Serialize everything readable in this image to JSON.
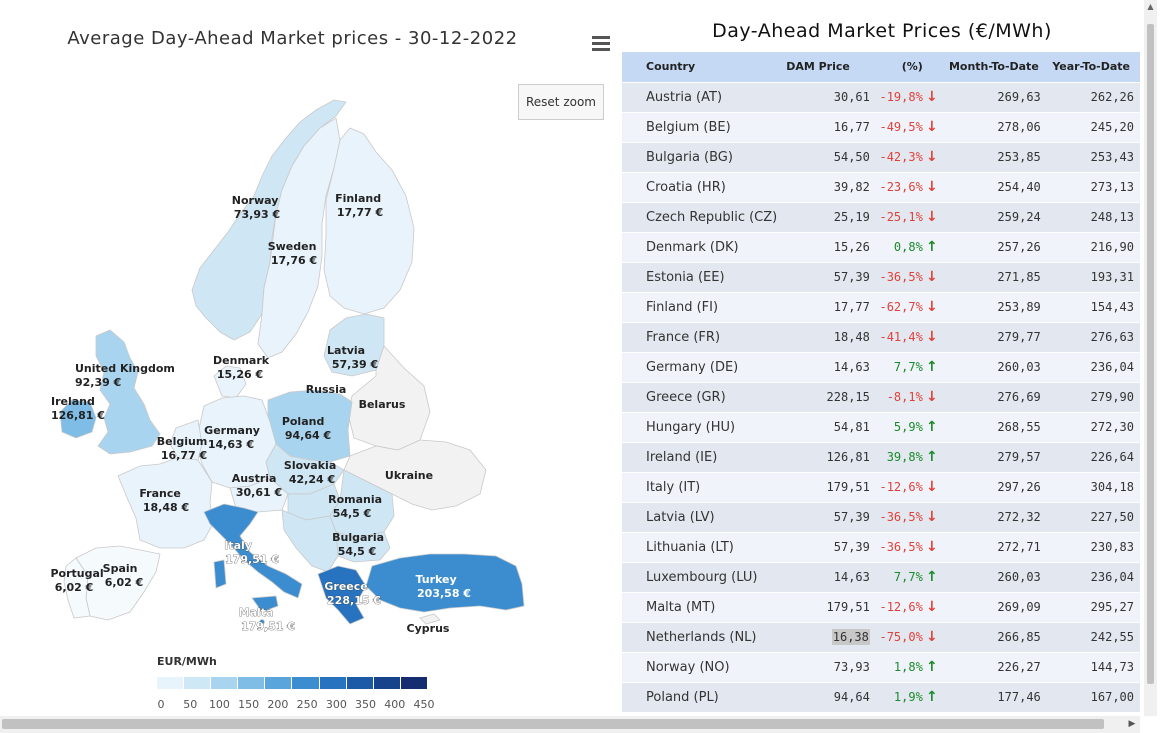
{
  "map": {
    "title": "Average Day-Ahead Market prices - 30-12-2022",
    "reset_zoom_label": "Reset zoom",
    "menu_icon": "hamburger-menu-icon",
    "legend_title": "EUR/MWh",
    "legend_ticks": [
      "0",
      "50",
      "100",
      "150",
      "200",
      "250",
      "300",
      "350",
      "400",
      "450"
    ],
    "legend_colors": [
      "#e8f4fb",
      "#cfe8f6",
      "#a9d4ef",
      "#7fbde6",
      "#5aa6dc",
      "#3c8dd0",
      "#2773c0",
      "#1c5aa8",
      "#17438c",
      "#152d70"
    ],
    "labels": {
      "norway": [
        "Norway",
        "73,93 €"
      ],
      "finland": [
        "Finland",
        "17,77 €"
      ],
      "sweden": [
        "Sweden",
        "17,76 €"
      ],
      "denmark": [
        "Denmark",
        "15,26 €"
      ],
      "latvia": [
        "Latvia",
        "57,39 €"
      ],
      "russia": [
        "Russia"
      ],
      "belarus": [
        "Belarus"
      ],
      "uk": [
        "United Kingdom",
        "92,39 €"
      ],
      "ireland": [
        "Ireland",
        "126,81 €"
      ],
      "poland": [
        "Poland",
        "94,64 €"
      ],
      "germany": [
        "Germany",
        "14,63 €"
      ],
      "belgium": [
        "Belgium",
        "16,77 €"
      ],
      "slovakia": [
        "Slovakia",
        "42,24 €"
      ],
      "ukraine": [
        "Ukraine"
      ],
      "austria": [
        "Austria",
        "30,61 €"
      ],
      "france": [
        "France",
        "18,48 €"
      ],
      "romania": [
        "Romania",
        "54,5 €"
      ],
      "bulgaria": [
        "Bulgaria",
        "54,5 €"
      ],
      "italy": [
        "Italy",
        "179,51 €"
      ],
      "portugal": [
        "Portugal",
        "6,02 €"
      ],
      "spain": [
        "Spain",
        "6,02 €"
      ],
      "greece": [
        "Greece",
        "228,15 €"
      ],
      "turkey": [
        "Turkey",
        "203,58 €"
      ],
      "malta": [
        "Malta",
        "179,51 €"
      ],
      "cyprus": [
        "Cyprus"
      ]
    }
  },
  "table": {
    "title": "Day-Ahead Market Prices (€/MWh)",
    "headers": [
      "Country",
      "DAM Price",
      "(%)",
      "Month-To-Date",
      "Year-To-Date"
    ],
    "rows": [
      {
        "country": "Austria (AT)",
        "price": "30,61",
        "pct": "-19,8%",
        "dir": "down",
        "mtd": "269,63",
        "ytd": "262,26"
      },
      {
        "country": "Belgium (BE)",
        "price": "16,77",
        "pct": "-49,5%",
        "dir": "down",
        "mtd": "278,06",
        "ytd": "245,20"
      },
      {
        "country": "Bulgaria (BG)",
        "price": "54,50",
        "pct": "-42,3%",
        "dir": "down",
        "mtd": "253,85",
        "ytd": "253,43"
      },
      {
        "country": "Croatia (HR)",
        "price": "39,82",
        "pct": "-23,6%",
        "dir": "down",
        "mtd": "254,40",
        "ytd": "273,13"
      },
      {
        "country": "Czech Republic (CZ)",
        "price": "25,19",
        "pct": "-25,1%",
        "dir": "down",
        "mtd": "259,24",
        "ytd": "248,13"
      },
      {
        "country": "Denmark (DK)",
        "price": "15,26",
        "pct": "0,8%",
        "dir": "up",
        "mtd": "257,26",
        "ytd": "216,90"
      },
      {
        "country": "Estonia (EE)",
        "price": "57,39",
        "pct": "-36,5%",
        "dir": "down",
        "mtd": "271,85",
        "ytd": "193,31"
      },
      {
        "country": "Finland (FI)",
        "price": "17,77",
        "pct": "-62,7%",
        "dir": "down",
        "mtd": "253,89",
        "ytd": "154,43"
      },
      {
        "country": "France (FR)",
        "price": "18,48",
        "pct": "-41,4%",
        "dir": "down",
        "mtd": "279,77",
        "ytd": "276,63"
      },
      {
        "country": "Germany (DE)",
        "price": "14,63",
        "pct": "7,7%",
        "dir": "up",
        "mtd": "260,03",
        "ytd": "236,04"
      },
      {
        "country": "Greece (GR)",
        "price": "228,15",
        "pct": "-8,1%",
        "dir": "down",
        "mtd": "276,69",
        "ytd": "279,90"
      },
      {
        "country": "Hungary (HU)",
        "price": "54,81",
        "pct": "5,9%",
        "dir": "up",
        "mtd": "268,55",
        "ytd": "272,30"
      },
      {
        "country": "Ireland (IE)",
        "price": "126,81",
        "pct": "39,8%",
        "dir": "up",
        "mtd": "279,57",
        "ytd": "226,64"
      },
      {
        "country": "Italy (IT)",
        "price": "179,51",
        "pct": "-12,6%",
        "dir": "down",
        "mtd": "297,26",
        "ytd": "304,18"
      },
      {
        "country": "Latvia (LV)",
        "price": "57,39",
        "pct": "-36,5%",
        "dir": "down",
        "mtd": "272,32",
        "ytd": "227,50"
      },
      {
        "country": "Lithuania (LT)",
        "price": "57,39",
        "pct": "-36,5%",
        "dir": "down",
        "mtd": "272,71",
        "ytd": "230,83"
      },
      {
        "country": "Luxembourg (LU)",
        "price": "14,63",
        "pct": "7,7%",
        "dir": "up",
        "mtd": "260,03",
        "ytd": "236,04"
      },
      {
        "country": "Malta (MT)",
        "price": "179,51",
        "pct": "-12,6%",
        "dir": "down",
        "mtd": "269,09",
        "ytd": "295,27"
      },
      {
        "country": "Netherlands (NL)",
        "price": "16,38",
        "pct": "-75,0%",
        "dir": "down",
        "mtd": "266,85",
        "ytd": "242,55",
        "highlight": true
      },
      {
        "country": "Norway (NO)",
        "price": "73,93",
        "pct": "1,8%",
        "dir": "up",
        "mtd": "226,27",
        "ytd": "144,73"
      },
      {
        "country": "Poland (PL)",
        "price": "94,64",
        "pct": "1,9%",
        "dir": "up",
        "mtd": "177,46",
        "ytd": "167,00"
      }
    ]
  },
  "colors": {
    "header_bg": "#c5d9f5",
    "row_odd": "#e3e8f0",
    "row_even": "#f0f4fa",
    "negative": "#e0413a",
    "positive": "#1a8a2a"
  },
  "icons": {
    "down": "↓",
    "up": "↑",
    "scroll_up": "▲",
    "scroll_right": "▶"
  }
}
